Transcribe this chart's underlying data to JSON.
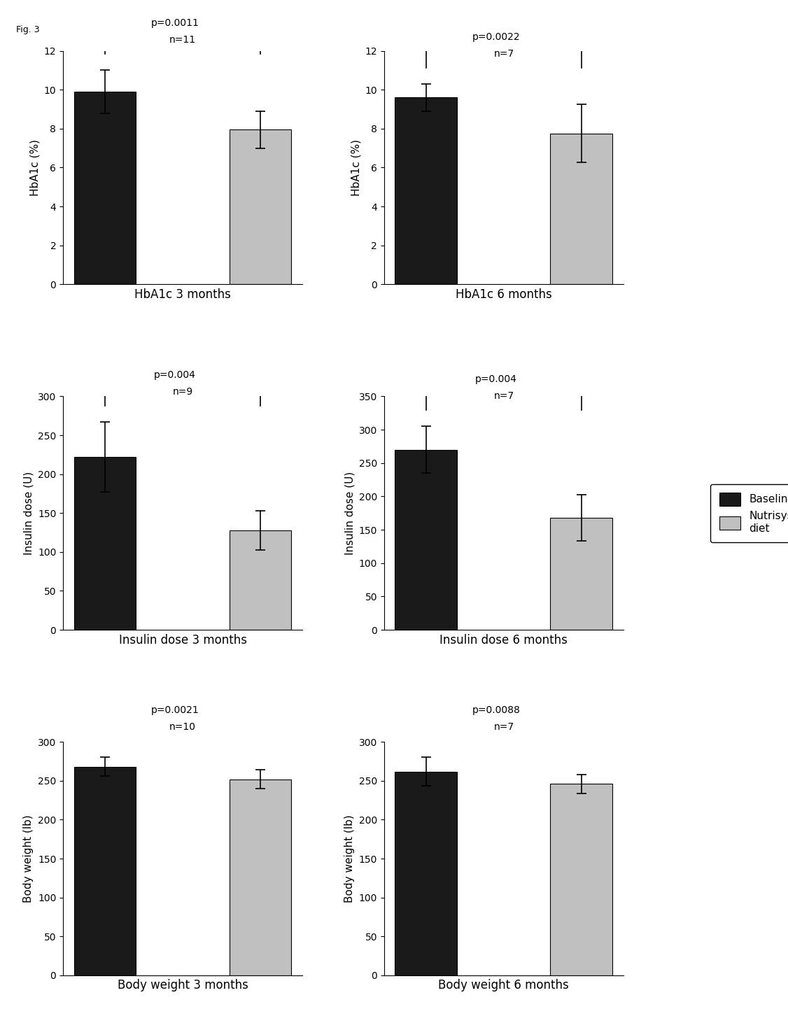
{
  "subplots": [
    {
      "title": "HbA1c 3 months",
      "ylabel": "HbA1c (%)",
      "baseline_val": 9.9,
      "baseline_err": 1.1,
      "diet_val": 7.95,
      "diet_err": 0.95,
      "ylim": [
        0,
        12
      ],
      "yticks": [
        0,
        2,
        4,
        6,
        8,
        10,
        12
      ],
      "p_text": "p=0.0011",
      "n_text": "n=11"
    },
    {
      "title": "HbA1c 6 months",
      "ylabel": "HbA1c (%)",
      "baseline_val": 9.6,
      "baseline_err": 0.7,
      "diet_val": 7.75,
      "diet_err": 1.5,
      "ylim": [
        0,
        12
      ],
      "yticks": [
        0,
        2,
        4,
        6,
        8,
        10,
        12
      ],
      "p_text": "p=0.0022",
      "n_text": "n=7"
    },
    {
      "title": "Insulin dose 3 months",
      "ylabel": "Insulin dose (U)",
      "baseline_val": 222,
      "baseline_err": 45,
      "diet_val": 128,
      "diet_err": 25,
      "ylim": [
        0,
        300
      ],
      "yticks": [
        0,
        50,
        100,
        150,
        200,
        250,
        300
      ],
      "p_text": "p=0.004",
      "n_text": "n=9"
    },
    {
      "title": "Insulin dose 6 months",
      "ylabel": "Insulin dose (U)",
      "baseline_val": 270,
      "baseline_err": 35,
      "diet_val": 168,
      "diet_err": 35,
      "ylim": [
        0,
        350
      ],
      "yticks": [
        0,
        50,
        100,
        150,
        200,
        250,
        300,
        350
      ],
      "p_text": "p=0.004",
      "n_text": "n=7"
    },
    {
      "title": "Body weight 3 months",
      "ylabel": "Body weight (lb)",
      "baseline_val": 268,
      "baseline_err": 12,
      "diet_val": 252,
      "diet_err": 12,
      "ylim": [
        0,
        300
      ],
      "yticks": [
        0,
        50,
        100,
        150,
        200,
        250,
        300
      ],
      "p_text": "p=0.0021",
      "n_text": "n=10"
    },
    {
      "title": "Body weight 6 months",
      "ylabel": "Body weight (lb)",
      "baseline_val": 262,
      "baseline_err": 18,
      "diet_val": 246,
      "diet_err": 12,
      "ylim": [
        0,
        300
      ],
      "yticks": [
        0,
        50,
        100,
        150,
        200,
        250,
        300
      ],
      "p_text": "p=0.0088",
      "n_text": "n=7"
    }
  ],
  "baseline_color": "#1a1a1a",
  "diet_color": "#c0c0c0",
  "bar_width": 0.4,
  "fig_title": "Fig. 3",
  "legend_labels": [
    "Baseline",
    "Nutrisystem\ndiet"
  ]
}
